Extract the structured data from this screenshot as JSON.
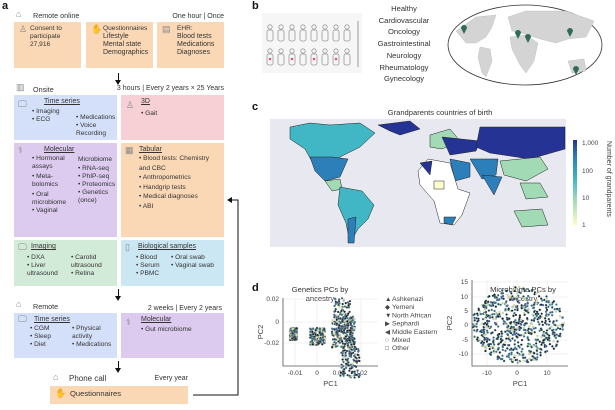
{
  "panel_labels": {
    "a": "a",
    "b": "b",
    "c": "c",
    "d": "d"
  },
  "remote_online": {
    "header": "Remote online",
    "timing": "One hour | Once",
    "consent": {
      "line1": "Consent to",
      "line2": "participate",
      "count": "27,916"
    },
    "questionnaires": {
      "title": "Questionnaires",
      "items": [
        "Lifestyle",
        "Mental state",
        "Demographics"
      ]
    },
    "ehr": {
      "title": "EHR:",
      "items": [
        "Blood tests",
        "Medications",
        "Diagnoses"
      ]
    }
  },
  "onsite": {
    "header": "Onsite",
    "timing": "3 hours | Every 2 years × 25 Years",
    "time_series": {
      "title": "Time series",
      "col1": [
        "Imaging",
        "ECG"
      ],
      "col2": [
        "Medications",
        "Voice Recording"
      ]
    },
    "three_d": {
      "title": "3D",
      "items": [
        "Gait"
      ]
    },
    "molecular": {
      "title": "Molecular",
      "col1": [
        "Hormonal assays",
        "Meta-bolomics",
        "Oral microbiome",
        "Vaginal"
      ],
      "col2_head": "Microbiome",
      "col2": [
        "RNA-seq",
        "PhIP-seq",
        "Proteomics",
        "Genetics (once)"
      ]
    },
    "tabular": {
      "title": "Tabular",
      "items": [
        "Blood tests: Chemistry and CBC",
        "Anthropometrics",
        "Handgrip tests",
        "Medical diagnoses",
        "ABI"
      ]
    },
    "imaging": {
      "title": "Imaging",
      "col1": [
        "DXA",
        "Liver ultrasound"
      ],
      "col2": [
        "Carotid ultrasound",
        "Retina"
      ]
    },
    "bio_samples": {
      "title": "Biological samples",
      "col1": [
        "Blood",
        "Serum",
        "PBMC"
      ],
      "col2": [
        "Oral swab",
        "Vaginal swab"
      ]
    }
  },
  "remote": {
    "header": "Remote",
    "timing": "2 weeks | Every 2 years",
    "time_series": {
      "title": "Time series",
      "col1": [
        "CGM",
        "Sleep",
        "Diet"
      ],
      "col2": [
        "Physical activity",
        "Medications"
      ]
    },
    "molecular": {
      "title": "Molecular",
      "items": [
        "Gut microbiome"
      ]
    }
  },
  "phone": {
    "header": "Phone call",
    "timing": "Every year",
    "questionnaires": "Questionnaires"
  },
  "diseases": [
    "Healthy",
    "Cardiovascular",
    "Oncology",
    "Gastrointestinal",
    "Neurology",
    "Rheumatology",
    "Gynecology"
  ],
  "colors": {
    "orange": "#fbd8b5",
    "blue": "#d4e0fa",
    "red": "#f6d0d4",
    "purple": "#dccbef",
    "green": "#d2ebd8",
    "cyan": "#cbe7f3",
    "pin": "#2f6b55"
  },
  "chart_data": [
    {
      "type": "heatmap",
      "title": "Grandparents countries of birth",
      "colorbar_label": "Number of grandparents",
      "colorbar_ticks": [
        "1,000",
        "100",
        "10",
        "1"
      ],
      "scale": "log",
      "range": [
        1,
        1000
      ],
      "colormap": [
        "#ffffcc",
        "#a1dab4",
        "#41b6c4",
        "#2c7fb8",
        "#253494"
      ]
    },
    {
      "type": "scatter",
      "title": "Genetics PCs by ancestry",
      "xlabel": "PC1",
      "ylabel": "PC2",
      "xticks": [
        "-0.01",
        "0",
        "0.01",
        "0.02"
      ],
      "yticks": [
        "0.02",
        "0",
        "-0.02"
      ],
      "xlim": [
        -0.015,
        0.027
      ],
      "ylim": [
        -0.04,
        0.03
      ],
      "grid": true,
      "legend_position": "right",
      "legend": [
        {
          "name": "Ashkenazi",
          "marker": "triangle-up"
        },
        {
          "name": "Yemeni",
          "marker": "diamond"
        },
        {
          "name": "North African",
          "marker": "triangle-down"
        },
        {
          "name": "Sephardi",
          "marker": "triangle-right"
        },
        {
          "name": "Middle Eastern",
          "marker": "triangle-left"
        },
        {
          "name": "Mixed",
          "marker": "circle"
        },
        {
          "name": "Other",
          "marker": "square"
        }
      ]
    },
    {
      "type": "scatter",
      "title": "Microbiome PCs by ancestry",
      "xlabel": "PC1",
      "ylabel": "PC2",
      "xticks": [
        "-10",
        "0",
        "10"
      ],
      "yticks": [
        "15",
        "10",
        "5",
        "0",
        "-5",
        "-10"
      ],
      "xlim": [
        -15,
        17
      ],
      "ylim": [
        -14,
        16
      ],
      "grid": true
    }
  ]
}
